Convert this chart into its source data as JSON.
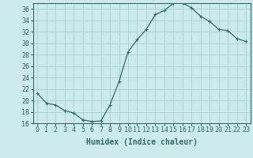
{
  "x": [
    0,
    1,
    2,
    3,
    4,
    5,
    6,
    7,
    8,
    9,
    10,
    11,
    12,
    13,
    14,
    15,
    16,
    17,
    18,
    19,
    20,
    21,
    22,
    23
  ],
  "y": [
    21.2,
    19.5,
    19.2,
    18.2,
    17.8,
    16.6,
    16.3,
    16.4,
    19.2,
    23.3,
    28.5,
    30.6,
    32.4,
    35.0,
    35.7,
    37.0,
    37.0,
    36.2,
    34.7,
    33.8,
    32.4,
    32.2,
    30.8,
    30.3
  ],
  "line_color": "#2e6b6b",
  "marker": "+",
  "marker_size": 3,
  "bg_color": "#cceaea",
  "grid_color": "#aad0d0",
  "xlabel": "Humidex (Indice chaleur)",
  "xlabel_fontsize": 7,
  "tick_fontsize": 6,
  "ylim": [
    16,
    37
  ],
  "yticks": [
    16,
    18,
    20,
    22,
    24,
    26,
    28,
    30,
    32,
    34,
    36
  ],
  "xticks": [
    0,
    1,
    2,
    3,
    4,
    5,
    6,
    7,
    8,
    9,
    10,
    11,
    12,
    13,
    14,
    15,
    16,
    17,
    18,
    19,
    20,
    21,
    22,
    23
  ]
}
